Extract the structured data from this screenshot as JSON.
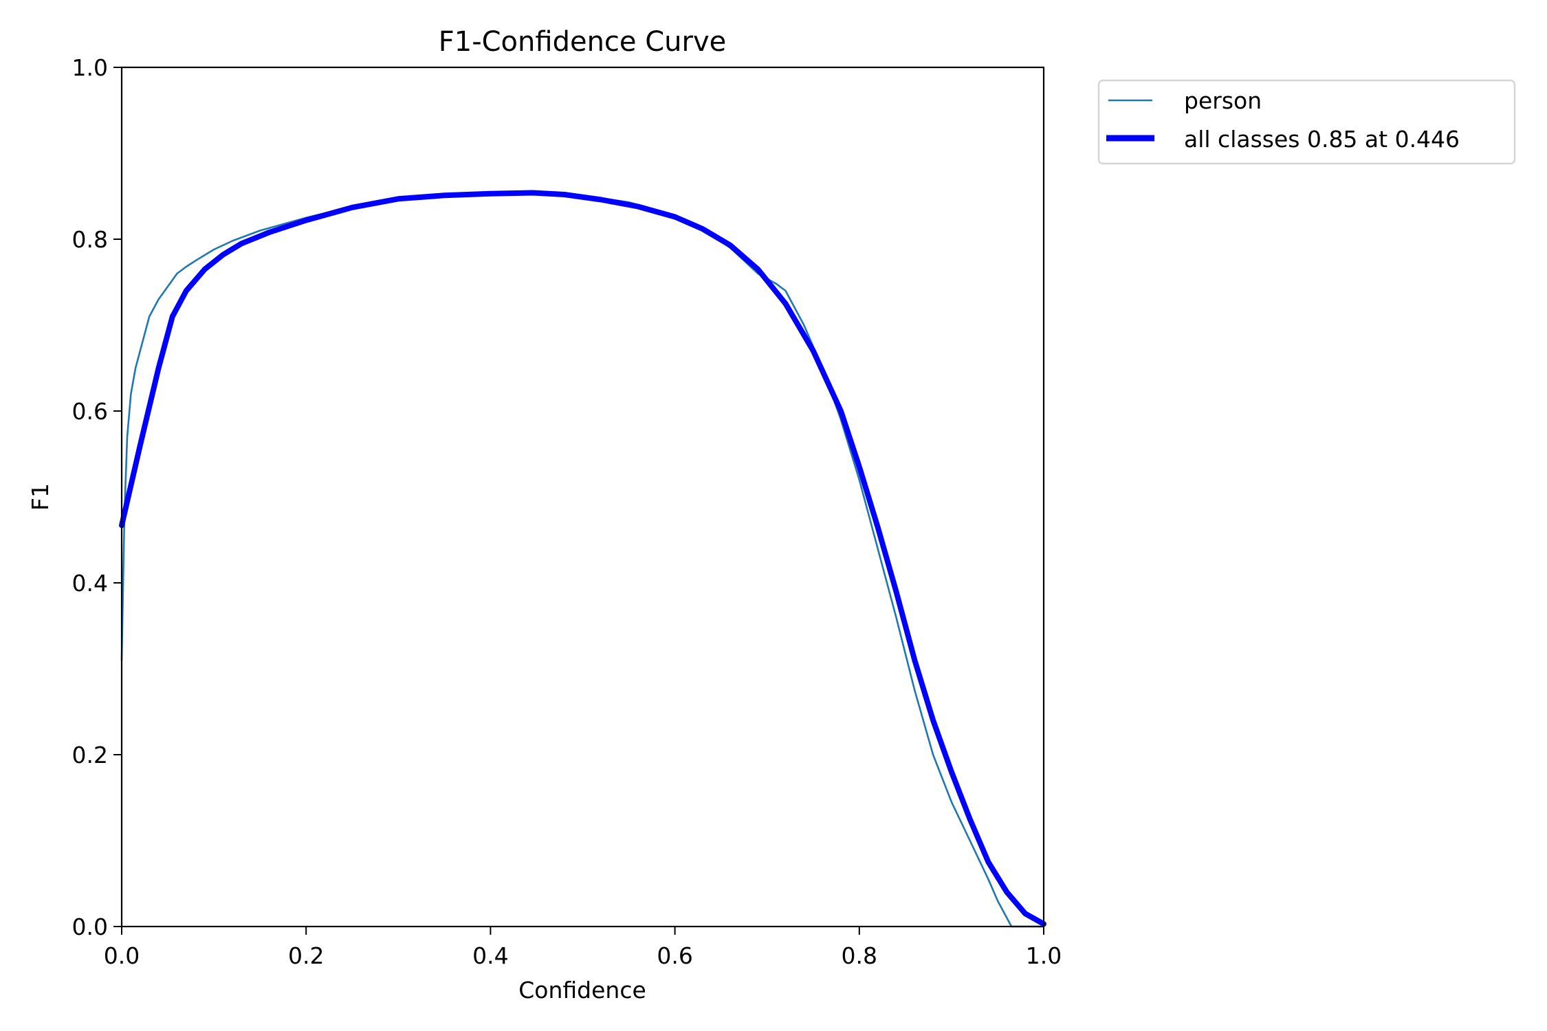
{
  "chart_data": {
    "type": "line",
    "title": "F1-Confidence Curve",
    "xlabel": "Confidence",
    "ylabel": "F1",
    "xlim": [
      0.0,
      1.0
    ],
    "ylim": [
      0.0,
      1.0
    ],
    "grid": false,
    "legend_position": "outside upper right",
    "x_ticks": [
      "0.0",
      "0.2",
      "0.4",
      "0.6",
      "0.8",
      "1.0"
    ],
    "y_ticks": [
      "0.0",
      "0.2",
      "0.4",
      "0.6",
      "0.8",
      "1.0"
    ],
    "series": [
      {
        "name": "person",
        "color": "#1f77b4",
        "linewidth": 1.5,
        "x": [
          0.0,
          0.003,
          0.006,
          0.01,
          0.015,
          0.02,
          0.03,
          0.04,
          0.05,
          0.06,
          0.07,
          0.08,
          0.1,
          0.12,
          0.15,
          0.2,
          0.25,
          0.3,
          0.35,
          0.4,
          0.446,
          0.5,
          0.55,
          0.6,
          0.63,
          0.66,
          0.69,
          0.71,
          0.72,
          0.74,
          0.76,
          0.78,
          0.8,
          0.82,
          0.84,
          0.86,
          0.88,
          0.9,
          0.92,
          0.94,
          0.95,
          0.96,
          0.965,
          1.0
        ],
        "y": [
          0.31,
          0.48,
          0.57,
          0.62,
          0.65,
          0.67,
          0.71,
          0.73,
          0.745,
          0.76,
          0.768,
          0.775,
          0.788,
          0.798,
          0.81,
          0.825,
          0.838,
          0.847,
          0.851,
          0.853,
          0.854,
          0.851,
          0.843,
          0.828,
          0.812,
          0.79,
          0.76,
          0.748,
          0.74,
          0.7,
          0.65,
          0.59,
          0.52,
          0.44,
          0.36,
          0.275,
          0.2,
          0.145,
          0.1,
          0.055,
          0.03,
          0.01,
          0.0,
          0.0
        ]
      },
      {
        "name": "all classes 0.85 at 0.446",
        "color": "#0000ff",
        "linewidth": 3,
        "x": [
          0.0,
          0.02,
          0.04,
          0.055,
          0.07,
          0.09,
          0.11,
          0.13,
          0.16,
          0.2,
          0.25,
          0.3,
          0.35,
          0.4,
          0.446,
          0.48,
          0.52,
          0.56,
          0.6,
          0.63,
          0.66,
          0.69,
          0.72,
          0.75,
          0.78,
          0.8,
          0.82,
          0.84,
          0.86,
          0.88,
          0.9,
          0.92,
          0.94,
          0.96,
          0.98,
          1.0
        ],
        "y": [
          0.467,
          0.56,
          0.65,
          0.71,
          0.74,
          0.765,
          0.782,
          0.795,
          0.808,
          0.822,
          0.837,
          0.847,
          0.851,
          0.853,
          0.854,
          0.852,
          0.846,
          0.838,
          0.826,
          0.812,
          0.793,
          0.765,
          0.725,
          0.67,
          0.6,
          0.535,
          0.465,
          0.39,
          0.31,
          0.24,
          0.18,
          0.125,
          0.075,
          0.04,
          0.015,
          0.003
        ]
      }
    ],
    "legend": [
      {
        "label": "person",
        "color": "#1f77b4"
      },
      {
        "label": "all classes 0.85 at 0.446",
        "color": "#0000ff"
      }
    ],
    "annotation": {
      "best_f1": 0.85,
      "at_confidence": 0.446
    }
  }
}
